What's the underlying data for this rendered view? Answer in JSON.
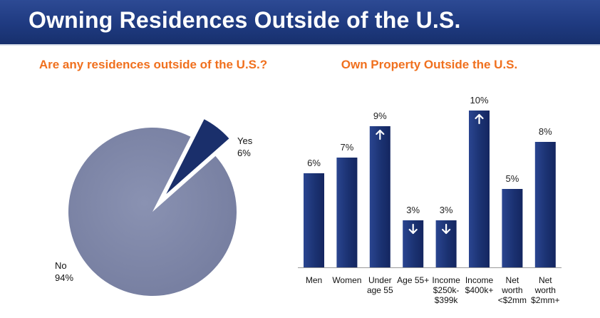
{
  "header": {
    "title": "Owning Residences Outside of the U.S."
  },
  "chart_data": [
    {
      "type": "pie",
      "title": "Are any residences outside of the U.S.?",
      "slices": [
        {
          "label": "Yes",
          "value": 6,
          "value_label": "6%",
          "color": "#1a2f6b",
          "exploded": true
        },
        {
          "label": "No",
          "value": 94,
          "value_label": "94%",
          "color": "#8088a8",
          "exploded": false
        }
      ]
    },
    {
      "type": "bar",
      "title": "Own Property Outside the U.S.",
      "ylim": [
        0,
        10
      ],
      "bar_color": "#1b3272",
      "categories": [
        "Men",
        "Women",
        "Under age 55",
        "Age 55+",
        "Income $250k-$399k",
        "Income $400k+",
        "Net worth <$2mm",
        "Net worth $2mm+"
      ],
      "category_lines": [
        [
          "Men"
        ],
        [
          "Women"
        ],
        [
          "Under",
          "age 55"
        ],
        [
          "Age 55+"
        ],
        [
          "Income",
          "$250k-",
          "$399k"
        ],
        [
          "Income",
          "$400k+"
        ],
        [
          "Net",
          "worth",
          "<$2mm"
        ],
        [
          "Net",
          "worth",
          "$2mm+"
        ]
      ],
      "values": [
        6,
        7,
        9,
        3,
        3,
        10,
        5,
        8
      ],
      "value_labels": [
        "6%",
        "7%",
        "9%",
        "3%",
        "3%",
        "10%",
        "5%",
        "8%"
      ],
      "arrows": [
        "",
        "",
        "up",
        "down",
        "down",
        "up",
        "",
        ""
      ]
    }
  ]
}
